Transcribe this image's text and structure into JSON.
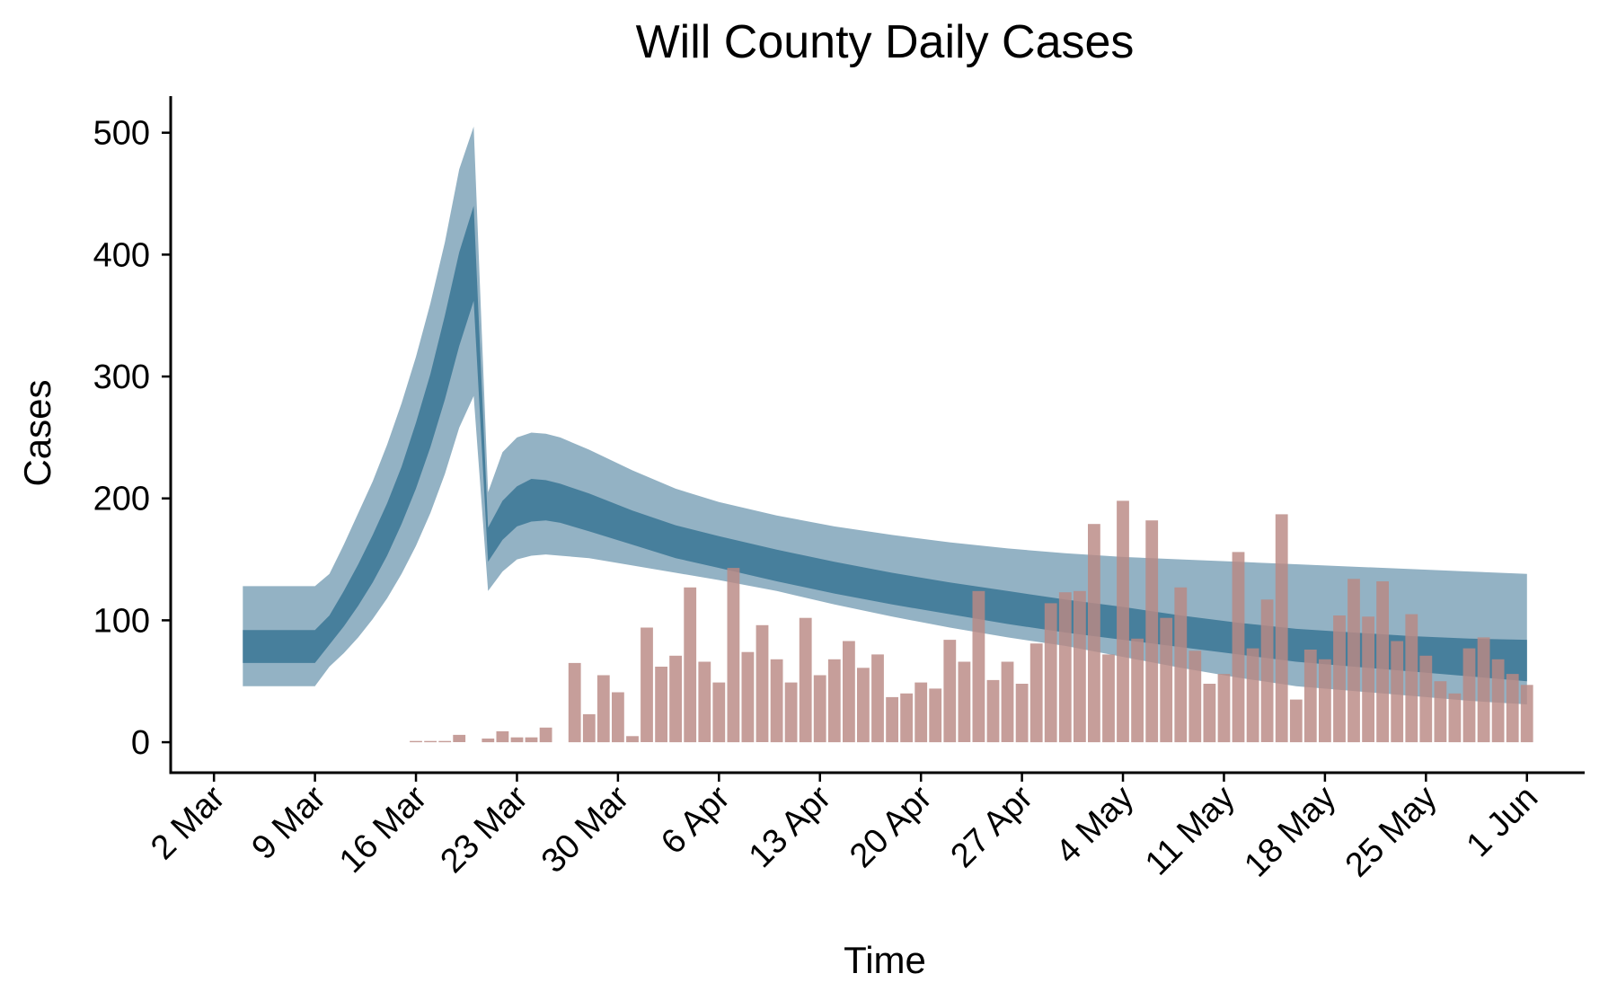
{
  "chart_data": {
    "type": "bar",
    "title": "Will County Daily Cases",
    "xlabel": "Time",
    "ylabel": "Cases",
    "ylim": [
      -25,
      530
    ],
    "xlim": [
      "2020-02-28",
      "2020-06-05"
    ],
    "grid": false,
    "x_ticks": [
      {
        "date": "2020-03-02",
        "label": "2 Mar"
      },
      {
        "date": "2020-03-09",
        "label": "9 Mar"
      },
      {
        "date": "2020-03-16",
        "label": "16 Mar"
      },
      {
        "date": "2020-03-23",
        "label": "23 Mar"
      },
      {
        "date": "2020-03-30",
        "label": "30 Mar"
      },
      {
        "date": "2020-04-06",
        "label": "6 Apr"
      },
      {
        "date": "2020-04-13",
        "label": "13 Apr"
      },
      {
        "date": "2020-04-20",
        "label": "20 Apr"
      },
      {
        "date": "2020-04-27",
        "label": "27 Apr"
      },
      {
        "date": "2020-05-04",
        "label": "4 May"
      },
      {
        "date": "2020-05-11",
        "label": "11 May"
      },
      {
        "date": "2020-05-18",
        "label": "18 May"
      },
      {
        "date": "2020-05-25",
        "label": "25 May"
      },
      {
        "date": "2020-06-01",
        "label": "1 Jun"
      }
    ],
    "y_ticks": [
      {
        "value": 0,
        "label": "0"
      },
      {
        "value": 100,
        "label": "100"
      },
      {
        "value": 200,
        "label": "200"
      },
      {
        "value": 300,
        "label": "300"
      },
      {
        "value": 400,
        "label": "400"
      },
      {
        "value": 500,
        "label": "500"
      }
    ],
    "bar_series": {
      "color": "#b98984",
      "dates": [
        "2020-03-16",
        "2020-03-17",
        "2020-03-18",
        "2020-03-19",
        "2020-03-21",
        "2020-03-22",
        "2020-03-23",
        "2020-03-24",
        "2020-03-25",
        "2020-03-27",
        "2020-03-28",
        "2020-03-29",
        "2020-03-30",
        "2020-03-31",
        "2020-04-01",
        "2020-04-02",
        "2020-04-03",
        "2020-04-04",
        "2020-04-05",
        "2020-04-06",
        "2020-04-07",
        "2020-04-08",
        "2020-04-09",
        "2020-04-10",
        "2020-04-11",
        "2020-04-12",
        "2020-04-13",
        "2020-04-14",
        "2020-04-15",
        "2020-04-16",
        "2020-04-17",
        "2020-04-18",
        "2020-04-19",
        "2020-04-20",
        "2020-04-21",
        "2020-04-22",
        "2020-04-23",
        "2020-04-24",
        "2020-04-25",
        "2020-04-26",
        "2020-04-27",
        "2020-04-28",
        "2020-04-29",
        "2020-04-30",
        "2020-05-01",
        "2020-05-02",
        "2020-05-03",
        "2020-05-04",
        "2020-05-05",
        "2020-05-06",
        "2020-05-07",
        "2020-05-08",
        "2020-05-09",
        "2020-05-10",
        "2020-05-11",
        "2020-05-12",
        "2020-05-13",
        "2020-05-14",
        "2020-05-15",
        "2020-05-16",
        "2020-05-17",
        "2020-05-18",
        "2020-05-19",
        "2020-05-20",
        "2020-05-21",
        "2020-05-22",
        "2020-05-23",
        "2020-05-24",
        "2020-05-25",
        "2020-05-26",
        "2020-05-27",
        "2020-05-28",
        "2020-05-29",
        "2020-05-30",
        "2020-05-31",
        "2020-06-01"
      ],
      "values": [
        1,
        1,
        1,
        6,
        3,
        9,
        4,
        4,
        12,
        65,
        23,
        55,
        41,
        5,
        94,
        62,
        71,
        127,
        66,
        49,
        143,
        74,
        96,
        68,
        49,
        102,
        55,
        68,
        83,
        61,
        72,
        37,
        40,
        49,
        44,
        84,
        66,
        124,
        51,
        66,
        48,
        81,
        114,
        123,
        124,
        179,
        72,
        198,
        85,
        182,
        102,
        127,
        75,
        48,
        56,
        156,
        77,
        117,
        187,
        35,
        76,
        68,
        104,
        134,
        103,
        132,
        83,
        105,
        71,
        50,
        40,
        77,
        86,
        68,
        56,
        47
      ]
    },
    "band_series": {
      "dates": [
        "2020-03-04",
        "2020-03-09",
        "2020-03-10",
        "2020-03-11",
        "2020-03-12",
        "2020-03-13",
        "2020-03-14",
        "2020-03-15",
        "2020-03-16",
        "2020-03-17",
        "2020-03-18",
        "2020-03-19",
        "2020-03-20",
        "2020-03-21",
        "2020-03-22",
        "2020-03-23",
        "2020-03-24",
        "2020-03-25",
        "2020-03-26",
        "2020-03-28",
        "2020-03-31",
        "2020-04-03",
        "2020-04-06",
        "2020-04-10",
        "2020-04-14",
        "2020-04-18",
        "2020-04-22",
        "2020-04-26",
        "2020-04-30",
        "2020-05-04",
        "2020-05-08",
        "2020-05-12",
        "2020-05-16",
        "2020-05-20",
        "2020-05-24",
        "2020-05-28",
        "2020-06-01"
      ],
      "outer": {
        "color": "#93b2c4",
        "upper": [
          128,
          128,
          138,
          162,
          188,
          214,
          244,
          278,
          316,
          360,
          410,
          470,
          505,
          205,
          238,
          250,
          254,
          253,
          250,
          240,
          223,
          208,
          197,
          186,
          177,
          170,
          164,
          159,
          155,
          152,
          150,
          148,
          146,
          144,
          142,
          140,
          138
        ],
        "lower": [
          46,
          46,
          62,
          73,
          86,
          101,
          118,
          138,
          161,
          188,
          220,
          258,
          284,
          124,
          140,
          150,
          153,
          154,
          153,
          151,
          145,
          139,
          133,
          124,
          113,
          103,
          94,
          86,
          79,
          70,
          61,
          53,
          46,
          42,
          38,
          34,
          31
        ]
      },
      "inner": {
        "color": "#477f9c",
        "upper": [
          92,
          92,
          104,
          124,
          146,
          170,
          196,
          226,
          262,
          302,
          350,
          402,
          440,
          176,
          198,
          210,
          216,
          215,
          212,
          204,
          190,
          178,
          169,
          158,
          148,
          139,
          131,
          124,
          117,
          111,
          104,
          98,
          93,
          90,
          87,
          85,
          84
        ],
        "lower": [
          65,
          65,
          80,
          95,
          112,
          131,
          153,
          179,
          208,
          242,
          281,
          325,
          362,
          148,
          166,
          177,
          181,
          182,
          180,
          173,
          162,
          151,
          143,
          132,
          122,
          113,
          105,
          97,
          90,
          84,
          78,
          72,
          66,
          62,
          58,
          54,
          50
        ]
      }
    }
  }
}
